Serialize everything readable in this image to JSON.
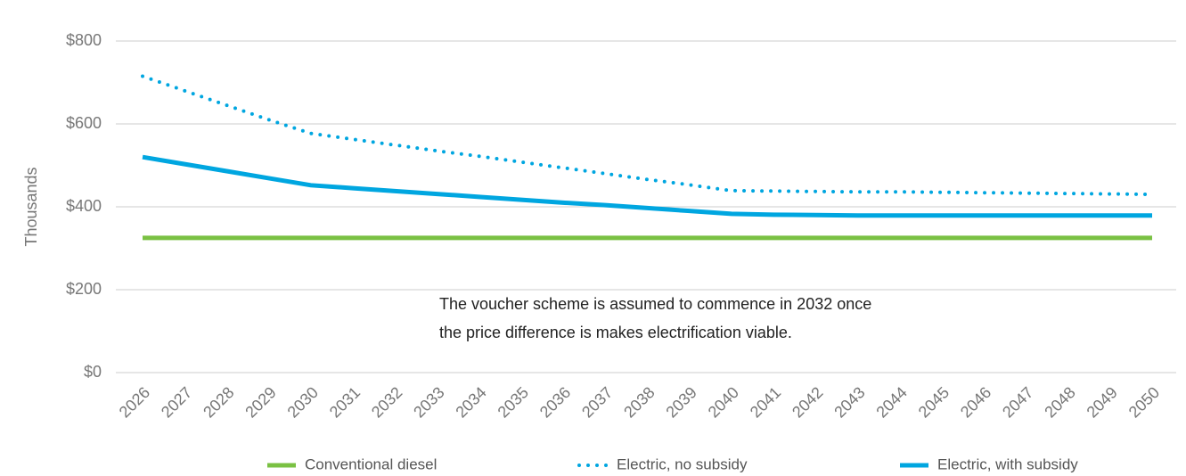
{
  "chart_data": {
    "type": "line",
    "y_label": "Thousands",
    "annotation": [
      "The voucher scheme is assumed to commence in 2032 once",
      "the price difference is makes electrification viable."
    ],
    "categories": [
      "2026",
      "2027",
      "2028",
      "2029",
      "2030",
      "2031",
      "2032",
      "2033",
      "2034",
      "2035",
      "2036",
      "2037",
      "2038",
      "2039",
      "2040",
      "2041",
      "2042",
      "2043",
      "2044",
      "2045",
      "2046",
      "2047",
      "2048",
      "2049",
      "2050"
    ],
    "series": [
      {
        "name": "Conventional diesel",
        "color": "#7ac143",
        "style": "solid",
        "values": [
          325,
          325,
          325,
          325,
          325,
          325,
          325,
          325,
          325,
          325,
          325,
          325,
          325,
          325,
          325,
          325,
          325,
          325,
          325,
          325,
          325,
          325,
          325,
          325,
          325
        ]
      },
      {
        "name": "Electric, no subsidy",
        "color": "#00a6e0",
        "style": "dotted",
        "values": [
          715,
          680,
          645,
          610,
          577,
          563,
          549,
          535,
          522,
          508,
          494,
          480,
          466,
          453,
          439,
          438,
          437,
          436,
          436,
          435,
          434,
          433,
          432,
          431,
          430
        ]
      },
      {
        "name": "Electric, with subsidy",
        "color": "#00a6e0",
        "style": "solid",
        "values": [
          520,
          503,
          486,
          469,
          452,
          445,
          438,
          431,
          424,
          417,
          410,
          404,
          397,
          390,
          383,
          381,
          380,
          379,
          379,
          379,
          379,
          379,
          379,
          379,
          379
        ]
      }
    ],
    "ylim": [
      0,
      800
    ],
    "yticks": [
      {
        "value": 0,
        "label": "$0"
      },
      {
        "value": 200,
        "label": "$200"
      },
      {
        "value": 400,
        "label": "$400"
      },
      {
        "value": 600,
        "label": "$600"
      },
      {
        "value": 800,
        "label": "$800"
      }
    ],
    "grid": true,
    "legend": "bottom"
  }
}
